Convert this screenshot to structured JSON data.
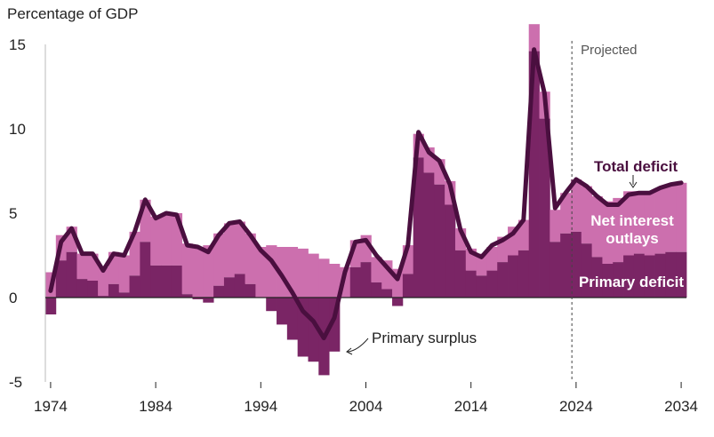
{
  "chart_data": {
    "type": "bar",
    "title": "",
    "ylabel": "Percentage of GDP",
    "xlabel": "",
    "ylim": [
      -5,
      15
    ],
    "xlim": [
      1973.5,
      2034.5
    ],
    "yticks": [
      -5,
      0,
      5,
      10,
      15
    ],
    "xticks": [
      1974,
      1984,
      1994,
      2004,
      2014,
      2024,
      2034
    ],
    "grid": false,
    "projection_marker": {
      "year": 2023.6,
      "label": "Projected"
    },
    "years": [
      1974,
      1975,
      1976,
      1977,
      1978,
      1979,
      1980,
      1981,
      1982,
      1983,
      1984,
      1985,
      1986,
      1987,
      1988,
      1989,
      1990,
      1991,
      1992,
      1993,
      1994,
      1995,
      1996,
      1997,
      1998,
      1999,
      2000,
      2001,
      2002,
      2003,
      2004,
      2005,
      2006,
      2007,
      2008,
      2009,
      2010,
      2011,
      2012,
      2013,
      2014,
      2015,
      2016,
      2017,
      2018,
      2019,
      2020,
      2021,
      2022,
      2023,
      2024,
      2025,
      2026,
      2027,
      2028,
      2029,
      2030,
      2031,
      2032,
      2033,
      2034
    ],
    "series": [
      {
        "name": "Primary deficit",
        "color": "#7a2565",
        "values": [
          -1.0,
          2.2,
          2.7,
          1.1,
          1.0,
          0.1,
          0.8,
          0.3,
          1.3,
          3.3,
          1.9,
          1.9,
          1.9,
          0.2,
          -0.1,
          -0.3,
          0.7,
          1.2,
          1.4,
          0.8,
          0.0,
          -0.8,
          -1.6,
          -2.5,
          -3.5,
          -3.8,
          -4.6,
          -3.2,
          0.0,
          1.8,
          2.1,
          0.9,
          0.5,
          -0.5,
          1.4,
          8.3,
          7.4,
          6.7,
          5.5,
          2.8,
          1.6,
          1.3,
          1.6,
          2.1,
          2.5,
          2.8,
          14.6,
          10.6,
          3.3,
          3.8,
          3.9,
          3.2,
          2.4,
          2.0,
          2.1,
          2.5,
          2.6,
          2.5,
          2.6,
          2.7,
          2.7
        ]
      },
      {
        "name": "Net interest outlays",
        "color": "#cc6fae",
        "values": [
          1.5,
          1.5,
          1.5,
          1.5,
          1.6,
          1.7,
          1.9,
          2.2,
          2.6,
          2.5,
          2.9,
          3.1,
          3.1,
          3.0,
          3.0,
          3.1,
          3.1,
          3.2,
          3.1,
          3.0,
          3.0,
          3.1,
          3.0,
          3.0,
          2.9,
          2.6,
          2.3,
          2.0,
          1.8,
          1.6,
          1.6,
          1.5,
          1.7,
          1.7,
          1.7,
          1.4,
          1.5,
          1.5,
          1.4,
          1.3,
          1.3,
          1.3,
          1.4,
          1.5,
          1.7,
          1.8,
          1.6,
          1.6,
          1.9,
          2.4,
          3.1,
          3.4,
          3.6,
          3.7,
          3.8,
          3.8,
          3.7,
          3.8,
          3.9,
          4.0,
          4.1
        ]
      },
      {
        "name": "Total deficit",
        "color": "#4a0f3f",
        "values": [
          0.4,
          3.3,
          4.1,
          2.6,
          2.6,
          1.6,
          2.6,
          2.5,
          3.9,
          5.8,
          4.7,
          5.0,
          4.9,
          3.1,
          3.0,
          2.7,
          3.7,
          4.4,
          4.5,
          3.7,
          2.8,
          2.2,
          1.3,
          0.3,
          -0.8,
          -1.4,
          -2.4,
          -1.2,
          1.5,
          3.3,
          3.4,
          2.5,
          1.8,
          1.1,
          3.1,
          9.8,
          8.6,
          8.1,
          6.7,
          4.0,
          2.7,
          2.4,
          3.1,
          3.4,
          3.8,
          4.6,
          14.7,
          12.1,
          5.3,
          6.2,
          7.0,
          6.6,
          6.0,
          5.5,
          5.5,
          6.1,
          6.2,
          6.2,
          6.5,
          6.7,
          6.8
        ]
      }
    ],
    "annotations": {
      "total_deficit": "Total deficit",
      "net_interest": "Net interest\noutlays",
      "primary_deficit": "Primary deficit",
      "primary_surplus": "Primary surplus"
    }
  }
}
